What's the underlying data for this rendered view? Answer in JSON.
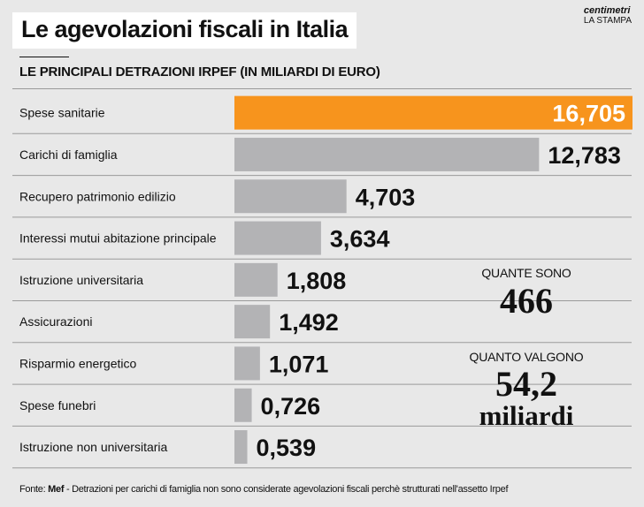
{
  "header": {
    "title": "Le agevolazioni fiscali in Italia",
    "subtitle": "LE PRINCIPALI DETRAZIONI IRPEF (IN MILIARDI DI EURO)"
  },
  "logo": {
    "line1": "centimetri",
    "line2": "LA STAMPA"
  },
  "colors": {
    "highlight": "#f7941d",
    "bar": "#b3b3b5",
    "background": "#e8e8e8"
  },
  "chart_data": {
    "type": "bar",
    "orientation": "horizontal",
    "categories": [
      "Spese sanitarie",
      "Carichi di famiglia",
      "Recupero patrimonio edilizio",
      "Interessi mutui abitazione principale",
      "Istruzione universitaria",
      "Assicurazioni",
      "Risparmio energetico",
      "Spese funebri",
      "Istruzione non universitaria"
    ],
    "values": [
      16.705,
      12.783,
      4.703,
      3.634,
      1.808,
      1.492,
      1.071,
      0.726,
      0.539
    ],
    "value_labels": [
      "16,705",
      "12,783",
      "4,703",
      "3,634",
      "1,808",
      "1,492",
      "1,071",
      "0,726",
      "0,539"
    ],
    "highlight_index": 0,
    "xlim": [
      0,
      16.705
    ],
    "grid": false
  },
  "stats": {
    "count_label": "QUANTE SONO",
    "count_value": "466",
    "total_label": "QUANTO VALGONO",
    "total_value": "54,2",
    "total_unit": "miliardi"
  },
  "footer": {
    "source_prefix": "Fonte: ",
    "source_bold": "Mef",
    "source_text": " - Detrazioni per carichi di famiglia non sono considerate agevolazioni fiscali perchè strutturati nell'assetto Irpef"
  }
}
